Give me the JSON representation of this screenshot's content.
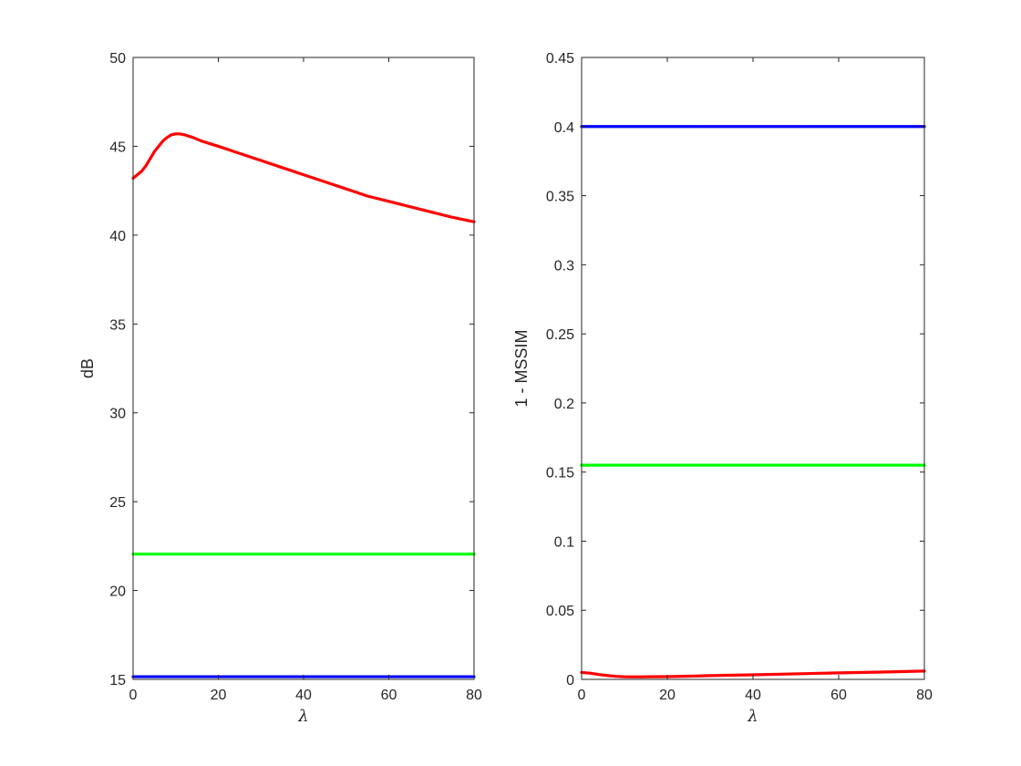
{
  "chart_data": [
    {
      "type": "line",
      "title": "",
      "xlabel": "λ",
      "ylabel": "dB",
      "xlim": [
        0,
        80
      ],
      "ylim": [
        15,
        50
      ],
      "xticks": [
        0,
        20,
        40,
        60,
        80
      ],
      "yticks": [
        15,
        20,
        25,
        30,
        35,
        40,
        45,
        50
      ],
      "grid": false,
      "legend": "none",
      "series": [
        {
          "color": "#ff0000",
          "x": [
            0,
            1,
            2,
            3,
            4,
            5,
            6,
            7,
            8,
            9,
            10,
            11,
            12,
            14,
            16,
            20,
            25,
            30,
            35,
            40,
            45,
            50,
            55,
            60,
            65,
            70,
            75,
            80
          ],
          "y": [
            43.2,
            43.4,
            43.6,
            43.9,
            44.3,
            44.7,
            45.0,
            45.3,
            45.5,
            45.65,
            45.7,
            45.7,
            45.65,
            45.5,
            45.3,
            45.0,
            44.6,
            44.2,
            43.8,
            43.4,
            43.0,
            42.6,
            42.2,
            41.9,
            41.6,
            41.3,
            41.0,
            40.75
          ]
        },
        {
          "color": "#00ff00",
          "x": [
            0,
            80
          ],
          "y": [
            22.05,
            22.05
          ]
        },
        {
          "color": "#0000ff",
          "x": [
            0,
            80
          ],
          "y": [
            15.15,
            15.15
          ]
        }
      ]
    },
    {
      "type": "line",
      "title": "",
      "xlabel": "λ",
      "ylabel": "1 - MSSIM",
      "xlim": [
        0,
        80
      ],
      "ylim": [
        0,
        0.45
      ],
      "xticks": [
        0,
        20,
        40,
        60,
        80
      ],
      "yticks": [
        0,
        0.05,
        0.1,
        0.15,
        0.2,
        0.25,
        0.3,
        0.35,
        0.4,
        0.45
      ],
      "grid": false,
      "legend": "none",
      "series": [
        {
          "color": "#0000ff",
          "x": [
            0,
            80
          ],
          "y": [
            0.4,
            0.4
          ]
        },
        {
          "color": "#00ff00",
          "x": [
            0,
            80
          ],
          "y": [
            0.155,
            0.155
          ]
        },
        {
          "color": "#ff0000",
          "x": [
            0,
            2,
            4,
            6,
            8,
            10,
            12,
            14,
            16,
            20,
            25,
            30,
            40,
            50,
            60,
            70,
            80
          ],
          "y": [
            0.005,
            0.0045,
            0.0035,
            0.0028,
            0.0022,
            0.0019,
            0.0018,
            0.0018,
            0.0019,
            0.002,
            0.0023,
            0.0027,
            0.0033,
            0.004,
            0.0047,
            0.0053,
            0.006
          ]
        }
      ]
    }
  ]
}
